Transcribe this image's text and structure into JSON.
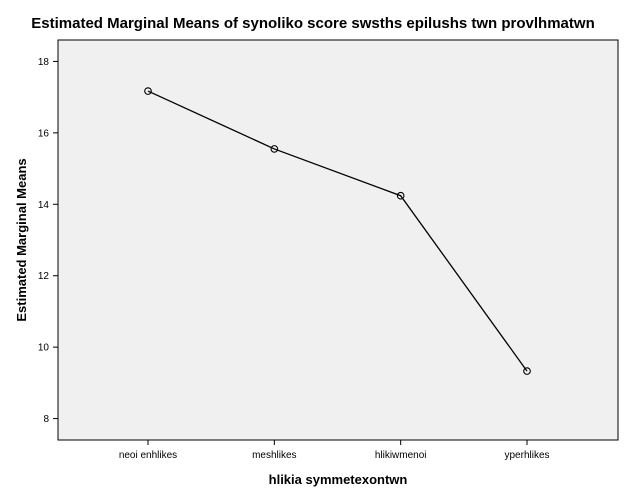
{
  "chart_data": {
    "type": "line",
    "title": "Estimated Marginal Means of synoliko score swsths epilushs twn provlhmatwn",
    "xlabel": "hlikia symmetexontwn",
    "ylabel": "Estimated Marginal Means",
    "categories": [
      "neoi enhlikes",
      "meshlikes",
      "hlikiwmenoi",
      "yperhlikes"
    ],
    "series": [
      {
        "values": [
          17.17,
          15.55,
          14.24,
          9.33
        ]
      }
    ],
    "ylim": [
      7.4,
      18.6
    ],
    "yticks": [
      8,
      10,
      12,
      14,
      16,
      18
    ],
    "grid": false,
    "plot_background": "#f0f0f0",
    "line_color": "#000000",
    "marker": "open-circle"
  }
}
